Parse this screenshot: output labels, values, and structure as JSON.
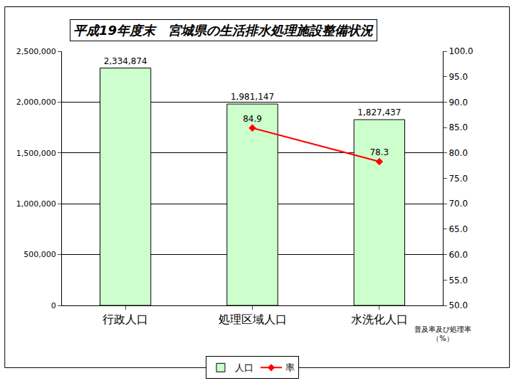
{
  "chart_data": {
    "type": "bar",
    "title": "平成19年度末　宮城県の生活排水処理施設整備状況",
    "categories": [
      "行政人口",
      "処理区域人口",
      "水洗化人口"
    ],
    "series": [
      {
        "name": "人口",
        "type": "bar",
        "color": "#ccffcc",
        "values": [
          2334874,
          1981147,
          1827437
        ],
        "value_labels": [
          "2,334,874",
          "1,981,147",
          "1,827,437"
        ]
      },
      {
        "name": "率",
        "type": "line",
        "axis": "y2",
        "color": "#ff0000",
        "marker": "diamond",
        "values": [
          null,
          84.9,
          78.3
        ]
      }
    ],
    "ylim": [
      0,
      2500000
    ],
    "yticks": [
      0,
      {
        "value": 500000,
        "label": "500,000"
      },
      {
        "value": 1000000,
        "label": "1,000,000"
      },
      {
        "value": 1500000,
        "label": "1,500,000"
      },
      {
        "value": 2000000,
        "label": "2,000,000"
      },
      {
        "value": 2500000,
        "label": "2,500,000"
      }
    ],
    "y2lim": [
      50,
      100
    ],
    "y2ticks": [
      {
        "value": 50,
        "label": "50.0"
      },
      {
        "value": 55,
        "label": "55.0"
      },
      {
        "value": 60,
        "label": "60.0"
      },
      {
        "value": 65,
        "label": "65.0"
      },
      {
        "value": 70,
        "label": "70.0"
      },
      {
        "value": 75,
        "label": "75.0"
      },
      {
        "value": 80,
        "label": "80.0"
      },
      {
        "value": 85,
        "label": "85.0"
      },
      {
        "value": 90,
        "label": "90.0"
      },
      {
        "value": 95,
        "label": "95.0"
      },
      {
        "value": 100,
        "label": "100.0"
      }
    ],
    "y2label": "普及率及び処理率\n（%）",
    "grid": true,
    "data_labels": true,
    "legend": "bottom"
  }
}
